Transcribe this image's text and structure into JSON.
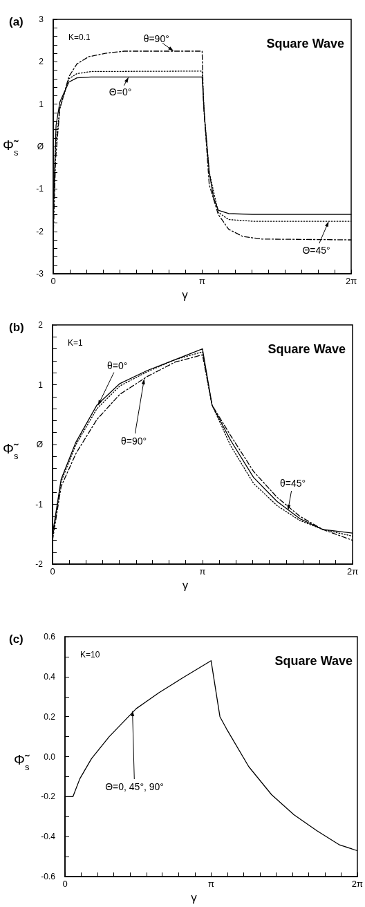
{
  "chart_data": [
    {
      "type": "line",
      "title": "(a)",
      "xlabel": "γ",
      "ylabel": "Φ̃$_{s}$",
      "marker": "none",
      "annotations": [
        "K=0.1",
        "Square Wave",
        {
          "text": "θ=90°",
          "x": 2.54,
          "y": 2.25
        },
        {
          "text": "Θ=0°",
          "x": 1.59,
          "y": 1.64
        },
        {
          "text": "Θ=45°",
          "x": 5.81,
          "y": -1.76
        }
      ],
      "xlim": [
        0,
        6.2832
      ],
      "ylim": [
        -3,
        3
      ],
      "xticks": [
        {
          "value": 0,
          "label": "0"
        },
        {
          "value": 0.35,
          "label": null
        },
        {
          "value": 0.7,
          "label": null
        },
        {
          "value": 1.05,
          "label": null
        },
        {
          "value": 1.4,
          "label": null
        },
        {
          "value": 1.75,
          "label": null
        },
        {
          "value": 2.09,
          "label": null
        },
        {
          "value": 2.44,
          "label": null
        },
        {
          "value": 2.79,
          "label": null
        },
        {
          "value": 3.1416,
          "label": "π"
        },
        {
          "value": 3.49,
          "label": null
        },
        {
          "value": 3.84,
          "label": null
        },
        {
          "value": 4.19,
          "label": null
        },
        {
          "value": 4.54,
          "label": null
        },
        {
          "value": 4.89,
          "label": null
        },
        {
          "value": 5.24,
          "label": null
        },
        {
          "value": 5.59,
          "label": null
        },
        {
          "value": 5.93,
          "label": null
        },
        {
          "value": 6.2832,
          "label": "2π"
        }
      ],
      "yticks": [
        -3,
        {
          "value": -2.8,
          "label": null
        },
        {
          "value": -2.6,
          "label": null
        },
        {
          "value": -2.4,
          "label": null
        },
        {
          "value": -2.2,
          "label": null
        },
        -2,
        {
          "value": -1.8,
          "label": null
        },
        {
          "value": -1.6,
          "label": null
        },
        {
          "value": -1.4,
          "label": null
        },
        {
          "value": -1.2,
          "label": null
        },
        -1,
        {
          "value": -0.8,
          "label": null
        },
        {
          "value": -0.6,
          "label": null
        },
        {
          "value": -0.4,
          "label": null
        },
        {
          "value": -0.2,
          "label": null
        },
        {
          "value": 0,
          "label": "Ø"
        },
        {
          "value": 0.2,
          "label": null
        },
        {
          "value": 0.4,
          "label": null
        },
        {
          "value": 0.6,
          "label": null
        },
        {
          "value": 0.8,
          "label": null
        },
        1,
        {
          "value": 1.2,
          "label": null
        },
        {
          "value": 1.4,
          "label": null
        },
        {
          "value": 1.6,
          "label": null
        },
        {
          "value": 1.8,
          "label": null
        },
        2,
        {
          "value": 2.2,
          "label": null
        },
        {
          "value": 2.4,
          "label": null
        },
        {
          "value": 2.6,
          "label": null
        },
        {
          "value": 2.8,
          "label": null
        },
        3
      ],
      "series": [
        {
          "color": "#000000",
          "line_style": "solid",
          "x": [
            0,
            0.03,
            0.06,
            0.14,
            0.33,
            0.5,
            0.8,
            3.14,
            3.19,
            3.29,
            3.38,
            3.48,
            3.7,
            4.2,
            6.28
          ],
          "values": [
            -1.6,
            -0.5,
            0.5,
            1.05,
            1.52,
            1.62,
            1.64,
            1.64,
            0.7,
            -0.6,
            -1.2,
            -1.5,
            -1.58,
            -1.6,
            -1.6
          ]
        },
        {
          "color": "#000000",
          "line_style": "dotted",
          "x": [
            0,
            0.05,
            0.14,
            0.33,
            0.5,
            0.8,
            3.14,
            3.19,
            3.29,
            3.48,
            3.7,
            4.2,
            6.28
          ],
          "values": [
            -1.75,
            0,
            0.9,
            1.6,
            1.72,
            1.77,
            1.78,
            0.7,
            -0.6,
            -1.55,
            -1.72,
            -1.76,
            -1.76
          ]
        },
        {
          "color": "#000000",
          "line_style": "dashed",
          "x": [
            0,
            0.05,
            0.14,
            0.33,
            0.5,
            0.75,
            1.1,
            1.5,
            3.14,
            3.17,
            3.29,
            3.48,
            3.7,
            4.0,
            4.4,
            6.28
          ],
          "values": [
            -2.2,
            -0.3,
            0.9,
            1.65,
            1.95,
            2.12,
            2.2,
            2.25,
            2.25,
            1.0,
            -0.9,
            -1.6,
            -1.95,
            -2.12,
            -2.18,
            -2.2
          ]
        }
      ]
    },
    {
      "type": "line",
      "title": "(b)",
      "xlabel": "γ",
      "ylabel": "Φ̃$_{s}$",
      "marker": "none",
      "annotations": [
        "K=1",
        "Square Wave",
        {
          "text": "θ=0°",
          "x": 0.95,
          "y": 0.65
        },
        {
          "text": "θ=90°",
          "x": 1.92,
          "y": 1.1
        },
        {
          "text": "θ=45°",
          "x": 4.93,
          "y": -1.1
        }
      ],
      "xlim": [
        0,
        6.2832
      ],
      "ylim": [
        -2,
        2
      ],
      "xticks": [
        {
          "value": 0,
          "label": "0"
        },
        {
          "value": 0.35,
          "label": null
        },
        {
          "value": 0.7,
          "label": null
        },
        {
          "value": 1.05,
          "label": null
        },
        {
          "value": 1.4,
          "label": null
        },
        {
          "value": 1.75,
          "label": null
        },
        {
          "value": 2.09,
          "label": null
        },
        {
          "value": 2.44,
          "label": null
        },
        {
          "value": 2.79,
          "label": null
        },
        {
          "value": 3.1416,
          "label": "π"
        },
        {
          "value": 3.49,
          "label": null
        },
        {
          "value": 3.84,
          "label": null
        },
        {
          "value": 4.19,
          "label": null
        },
        {
          "value": 4.54,
          "label": null
        },
        {
          "value": 4.89,
          "label": null
        },
        {
          "value": 5.24,
          "label": null
        },
        {
          "value": 5.59,
          "label": null
        },
        {
          "value": 5.93,
          "label": null
        },
        {
          "value": 6.2832,
          "label": "2π"
        }
      ],
      "yticks": [
        -2,
        {
          "value": -1.8,
          "label": null
        },
        {
          "value": -1.6,
          "label": null
        },
        {
          "value": -1.4,
          "label": null
        },
        {
          "value": -1.2,
          "label": null
        },
        -1,
        {
          "value": -0.8,
          "label": null
        },
        {
          "value": -0.6,
          "label": null
        },
        {
          "value": -0.4,
          "label": null
        },
        {
          "value": -0.2,
          "label": null
        },
        {
          "value": 0,
          "label": "Ø"
        },
        {
          "value": 0.2,
          "label": null
        },
        {
          "value": 0.4,
          "label": null
        },
        {
          "value": 0.6,
          "label": null
        },
        {
          "value": 0.8,
          "label": null
        },
        1,
        {
          "value": 1.2,
          "label": null
        },
        {
          "value": 1.4,
          "label": null
        },
        {
          "value": 1.6,
          "label": null
        },
        {
          "value": 1.8,
          "label": null
        },
        2
      ],
      "series": [
        {
          "color": "#000000",
          "line_style": "solid",
          "x": [
            0,
            0.18,
            0.49,
            0.93,
            1.41,
            1.99,
            2.57,
            3.14,
            3.34,
            3.73,
            4.21,
            4.7,
            5.18,
            5.66,
            6.28
          ],
          "values": [
            -1.5,
            -0.58,
            0.04,
            0.66,
            1.02,
            1.24,
            1.42,
            1.6,
            0.66,
            0.07,
            -0.55,
            -0.95,
            -1.24,
            -1.42,
            -1.48
          ]
        },
        {
          "color": "#000000",
          "line_style": "dotted",
          "x": [
            0,
            0.18,
            0.49,
            0.93,
            1.41,
            1.99,
            2.57,
            3.14,
            3.34,
            3.73,
            4.21,
            4.7,
            5.18,
            5.66,
            6.28
          ],
          "values": [
            -1.55,
            -0.62,
            0,
            0.6,
            0.98,
            1.22,
            1.42,
            1.55,
            0.66,
            -0.02,
            -0.65,
            -1.02,
            -1.27,
            -1.42,
            -1.53
          ]
        },
        {
          "color": "#000000",
          "line_style": "dashed",
          "x": [
            0,
            0.18,
            0.49,
            0.93,
            1.41,
            1.99,
            2.57,
            3.14,
            3.34,
            3.73,
            4.21,
            4.7,
            5.18,
            5.66,
            6.28
          ],
          "values": [
            -1.6,
            -0.7,
            -0.15,
            0.42,
            0.84,
            1.14,
            1.38,
            1.5,
            0.66,
            0.15,
            -0.45,
            -0.88,
            -1.2,
            -1.42,
            -1.6
          ]
        }
      ]
    },
    {
      "type": "line",
      "title": "(c)",
      "xlabel": "γ",
      "ylabel": "Φ̃$_{s}$",
      "marker": "none",
      "annotations": [
        "K=10",
        "Square Wave",
        {
          "text": "Θ=0, 45°, 90°",
          "x": 1.45,
          "y": 0.23
        }
      ],
      "xlim": [
        0,
        6.2832
      ],
      "ylim": [
        -0.6,
        0.6
      ],
      "xticks": [
        {
          "value": 0,
          "label": "0"
        },
        {
          "value": 0.35,
          "label": null
        },
        {
          "value": 0.7,
          "label": null
        },
        {
          "value": 1.05,
          "label": null
        },
        {
          "value": 1.4,
          "label": null
        },
        {
          "value": 1.75,
          "label": null
        },
        {
          "value": 2.09,
          "label": null
        },
        {
          "value": 2.44,
          "label": null
        },
        {
          "value": 2.79,
          "label": null
        },
        {
          "value": 3.1416,
          "label": "π"
        },
        {
          "value": 3.49,
          "label": null
        },
        {
          "value": 3.84,
          "label": null
        },
        {
          "value": 4.19,
          "label": null
        },
        {
          "value": 4.54,
          "label": null
        },
        {
          "value": 4.89,
          "label": null
        },
        {
          "value": 5.24,
          "label": null
        },
        {
          "value": 5.59,
          "label": null
        },
        {
          "value": 5.93,
          "label": null
        },
        {
          "value": 6.2832,
          "label": "2π"
        }
      ],
      "yticks": [
        {
          "value": -0.6,
          "label": "-0.6"
        },
        {
          "value": -0.5,
          "label": null
        },
        {
          "value": -0.4,
          "label": "-0.4"
        },
        {
          "value": -0.3,
          "label": null
        },
        {
          "value": -0.2,
          "label": "-0.2"
        },
        {
          "value": -0.1,
          "label": null
        },
        {
          "value": 0,
          "label": "0.0"
        },
        {
          "value": 0.1,
          "label": null
        },
        {
          "value": 0.2,
          "label": "0.2"
        },
        {
          "value": 0.3,
          "label": null
        },
        {
          "value": 0.4,
          "label": "0.4"
        },
        {
          "value": 0.5,
          "label": null
        },
        {
          "value": 0.6,
          "label": "0.6"
        }
      ],
      "series": [
        {
          "color": "#000000",
          "line_style": "solid",
          "x": [
            0,
            0,
            0.17,
            0.32,
            0.57,
            0.95,
            1.53,
            2.02,
            2.5,
            3.14,
            3.33,
            3.47,
            3.95,
            4.44,
            4.92,
            5.41,
            5.89,
            6.28
          ],
          "values": [
            -0.5,
            -0.2,
            -0.2,
            -0.11,
            -0.01,
            0.1,
            0.24,
            0.32,
            0.39,
            0.48,
            0.2,
            0.14,
            -0.05,
            -0.19,
            -0.29,
            -0.37,
            -0.44,
            -0.47
          ]
        }
      ]
    }
  ]
}
